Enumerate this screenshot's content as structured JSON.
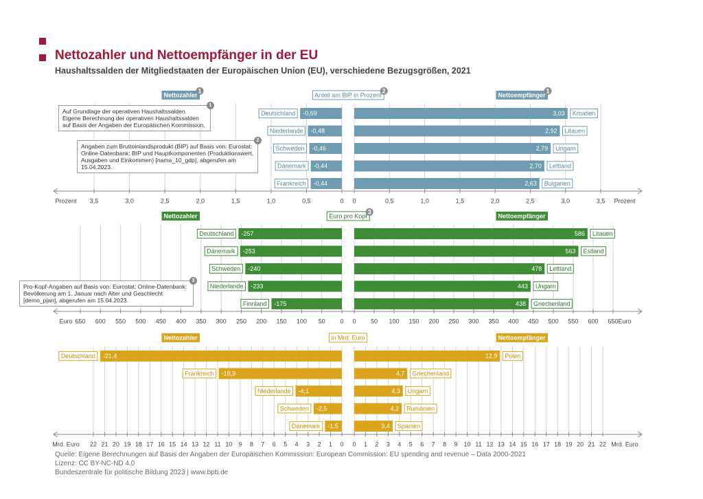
{
  "title": "Nettozahler und Nettoempfänger in der EU",
  "subtitle": "Haushaltssalden der Mitgliedstaaten der Europäischen Union (EU), verschiedene Bezugsgrößen, 2021",
  "chart_data": [
    {
      "type": "bar",
      "title": "Anteil am BIP in Prozent",
      "title_marker": "2",
      "color": "#6f9cb1",
      "text_color": "#5e8aa0",
      "unit": "Prozent",
      "grid": true,
      "left": {
        "name": "Nettozahler",
        "marker": "1",
        "categories": [
          "Deutschland",
          "Niederlande",
          "Schweden",
          "Dänemark",
          "Frankreich"
        ],
        "values": [
          -0.59,
          -0.48,
          -0.46,
          -0.44,
          -0.44
        ],
        "value_labels": [
          "-0,59",
          "-0,48",
          "-0,46",
          "-0,44",
          "-0,44"
        ],
        "xlim": [
          -3.5,
          0
        ],
        "xticks": [
          {
            "value": -3.5,
            "label": "3,5"
          },
          {
            "value": -3,
            "label": "3,0"
          },
          {
            "value": -2.5,
            "label": "2,5"
          },
          {
            "value": -2,
            "label": "2,0"
          },
          {
            "value": -1.5,
            "label": "1,5"
          },
          {
            "value": -1,
            "label": "1,0"
          },
          {
            "value": -0.5,
            "label": "0,5"
          },
          0
        ]
      },
      "right": {
        "name": "Nettoempfänger",
        "marker": "1",
        "categories": [
          "Kroatien",
          "Litauen",
          "Ungarn",
          "Lettland",
          "Bulgarien"
        ],
        "values": [
          3.03,
          2.92,
          2.79,
          2.7,
          2.63
        ],
        "value_labels": [
          "3,03",
          "2,92",
          "2,79",
          "2,70",
          "2,63"
        ],
        "xlim": [
          0,
          3.5
        ],
        "xticks": [
          0,
          {
            "value": 0.5,
            "label": "0,5"
          },
          {
            "value": 1,
            "label": "1,0"
          },
          {
            "value": 1.5,
            "label": "1,5"
          },
          {
            "value": 2,
            "label": "2,0"
          },
          {
            "value": 2.5,
            "label": "2,5"
          },
          {
            "value": 3,
            "label": "3,0"
          },
          {
            "value": 3.5,
            "label": "3,5"
          }
        ]
      }
    },
    {
      "type": "bar",
      "title": "Euro pro Kopf",
      "title_marker": "3",
      "color": "#3f8c37",
      "text_color": "#2f7a2a",
      "unit": "Euro",
      "grid": true,
      "left": {
        "name": "Nettozahler",
        "categories": [
          "Deutschland",
          "Dänemark",
          "Schweden",
          "Niederlande",
          "Finnland"
        ],
        "values": [
          -257,
          -253,
          -240,
          -233,
          -175
        ],
        "xlim": [
          -650,
          0
        ],
        "xticks": [
          {
            "value": -650,
            "label": "650"
          },
          {
            "value": -600,
            "label": "600"
          },
          {
            "value": -550,
            "label": "550"
          },
          {
            "value": -500,
            "label": "500"
          },
          {
            "value": -450,
            "label": "450"
          },
          {
            "value": -400,
            "label": "400"
          },
          {
            "value": -350,
            "label": "350"
          },
          {
            "value": -300,
            "label": "300"
          },
          {
            "value": -250,
            "label": "250"
          },
          {
            "value": -200,
            "label": "200"
          },
          {
            "value": -150,
            "label": "150"
          },
          {
            "value": -100,
            "label": "100"
          },
          {
            "value": -50,
            "label": "50"
          },
          0
        ]
      },
      "right": {
        "name": "Nettoempfänger",
        "categories": [
          "Litauen",
          "Estland",
          "Lettland",
          "Ungarn",
          "Griechenland"
        ],
        "values": [
          586,
          563,
          478,
          443,
          438
        ],
        "xlim": [
          0,
          650
        ],
        "xticks": [
          0,
          50,
          100,
          150,
          200,
          250,
          300,
          350,
          400,
          450,
          500,
          550,
          600,
          650
        ]
      }
    },
    {
      "type": "bar",
      "title": "in Mrd. Euro",
      "color": "#dba41c",
      "text_color": "#c98f0c",
      "unit": "Mrd. Euro",
      "grid": true,
      "left": {
        "name": "Nettozahler",
        "categories": [
          "Deutschland",
          "Frankreich",
          "Niederlande",
          "Schweden",
          "Dänemark"
        ],
        "values": [
          -21.4,
          -10.9,
          -4.1,
          -2.5,
          -1.5
        ],
        "value_labels": [
          "-21,4",
          "-10,9",
          "-4,1",
          "-2,5",
          "-1,5"
        ],
        "xlim": [
          -22,
          0
        ],
        "xticks": [
          {
            "value": -22,
            "label": "22"
          },
          {
            "value": -21,
            "label": "21"
          },
          {
            "value": -20,
            "label": "20"
          },
          {
            "value": -19,
            "label": "19"
          },
          {
            "value": -18,
            "label": "18"
          },
          {
            "value": -17,
            "label": "17"
          },
          {
            "value": -16,
            "label": "16"
          },
          {
            "value": -15,
            "label": "15"
          },
          {
            "value": -14,
            "label": "14"
          },
          {
            "value": -13,
            "label": "13"
          },
          {
            "value": -12,
            "label": "12"
          },
          {
            "value": -11,
            "label": "11"
          },
          {
            "value": -10,
            "label": "10"
          },
          {
            "value": -9,
            "label": "9"
          },
          {
            "value": -8,
            "label": "8"
          },
          {
            "value": -7,
            "label": "7"
          },
          {
            "value": -6,
            "label": "6"
          },
          {
            "value": -5,
            "label": "5"
          },
          {
            "value": -4,
            "label": "4"
          },
          {
            "value": -3,
            "label": "3"
          },
          {
            "value": -2,
            "label": "2"
          },
          {
            "value": -1,
            "label": "1"
          },
          0
        ]
      },
      "right": {
        "name": "Nettoempfänger",
        "categories": [
          "Polen",
          "Griechenland",
          "Ungarn",
          "Rumänien",
          "Spanien"
        ],
        "values": [
          12.9,
          4.7,
          4.3,
          4.2,
          3.4
        ],
        "value_labels": [
          "12,9",
          "4,7",
          "4,3",
          "4,2",
          "3,4"
        ],
        "xlim": [
          0,
          22
        ],
        "xticks": [
          0,
          1,
          2,
          3,
          4,
          5,
          6,
          7,
          8,
          9,
          10,
          11,
          12,
          13,
          14,
          15,
          16,
          17,
          18,
          19,
          20,
          21,
          22
        ]
      }
    }
  ],
  "notes": [
    {
      "marker": "1",
      "text": "Auf Grundlage der operativen Haushaltssalden. Eigene Berechnung der operativen Haushaltssalden auf Basis der Angaben der Europäischen Kommission."
    },
    {
      "marker": "2",
      "text": "Angaben zum Bruttoinlandsprodukt (BIP) auf Basis von: Eurostat: Online-Datenbank: BIP und Hauptkomponenten (Produktionswert, Ausgaben und Einkommen) [nama_10_gdp], abgerufen am 15.04.2023."
    },
    {
      "marker": "3",
      "text": "Pro-Kopf-Angaben auf Basis von: Eurostat: Online-Datenbank: Bevölkerung am 1. Januar nach Alter und Geschlecht [demo_pjan], abgerufen am 15.04.2023."
    }
  ],
  "source": [
    "Quelle: Eigene Berechnungen auf Basis der Angaben der Europäischen Kommission: European Commission: EU spending and revenue – Data 2000-2021",
    "Lizenz: CC BY-NC-ND 4.0",
    "Bundeszentrale für politische Bildung 2023 | www.bpb.de"
  ]
}
